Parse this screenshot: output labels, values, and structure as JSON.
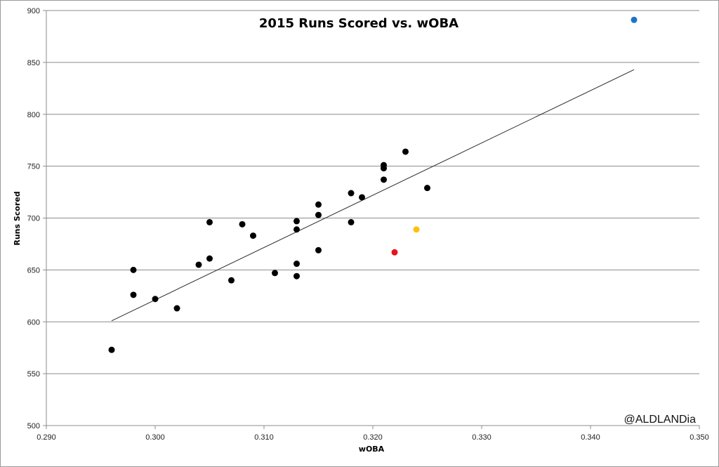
{
  "chart_data": {
    "type": "scatter",
    "title": "2015 Runs Scored vs. wOBA",
    "xlabel": "wOBA",
    "ylabel": "Runs Scored",
    "xlim": [
      0.29,
      0.35
    ],
    "ylim": [
      500,
      900
    ],
    "x_ticks": [
      "0.290",
      "0.300",
      "0.310",
      "0.320",
      "0.330",
      "0.340",
      "0.350"
    ],
    "y_ticks": [
      "500",
      "550",
      "600",
      "650",
      "700",
      "750",
      "800",
      "850",
      "900"
    ],
    "grid": "horizontal",
    "legend": "none",
    "annotation": "@ALDLANDia",
    "colors": {
      "default": "#000000",
      "blue": "#1f74c6",
      "red": "#e8141b",
      "yellow": "#ffc107",
      "trendline": "#2b2b2b"
    },
    "trendline": {
      "x": [
        0.296,
        0.344
      ],
      "y": [
        601,
        843
      ]
    },
    "points": [
      {
        "x": 0.296,
        "y": 573
      },
      {
        "x": 0.298,
        "y": 650
      },
      {
        "x": 0.298,
        "y": 626
      },
      {
        "x": 0.3,
        "y": 622
      },
      {
        "x": 0.302,
        "y": 613
      },
      {
        "x": 0.304,
        "y": 655
      },
      {
        "x": 0.305,
        "y": 696
      },
      {
        "x": 0.305,
        "y": 661
      },
      {
        "x": 0.307,
        "y": 640
      },
      {
        "x": 0.308,
        "y": 694
      },
      {
        "x": 0.309,
        "y": 683
      },
      {
        "x": 0.311,
        "y": 647
      },
      {
        "x": 0.313,
        "y": 697
      },
      {
        "x": 0.313,
        "y": 689
      },
      {
        "x": 0.313,
        "y": 656
      },
      {
        "x": 0.313,
        "y": 644
      },
      {
        "x": 0.315,
        "y": 713
      },
      {
        "x": 0.315,
        "y": 703
      },
      {
        "x": 0.315,
        "y": 669
      },
      {
        "x": 0.318,
        "y": 724
      },
      {
        "x": 0.318,
        "y": 696
      },
      {
        "x": 0.319,
        "y": 720
      },
      {
        "x": 0.321,
        "y": 751
      },
      {
        "x": 0.321,
        "y": 748
      },
      {
        "x": 0.321,
        "y": 737
      },
      {
        "x": 0.322,
        "y": 667,
        "color": "red"
      },
      {
        "x": 0.323,
        "y": 764
      },
      {
        "x": 0.324,
        "y": 689,
        "color": "yellow"
      },
      {
        "x": 0.325,
        "y": 729
      },
      {
        "x": 0.344,
        "y": 891,
        "color": "blue"
      }
    ]
  }
}
